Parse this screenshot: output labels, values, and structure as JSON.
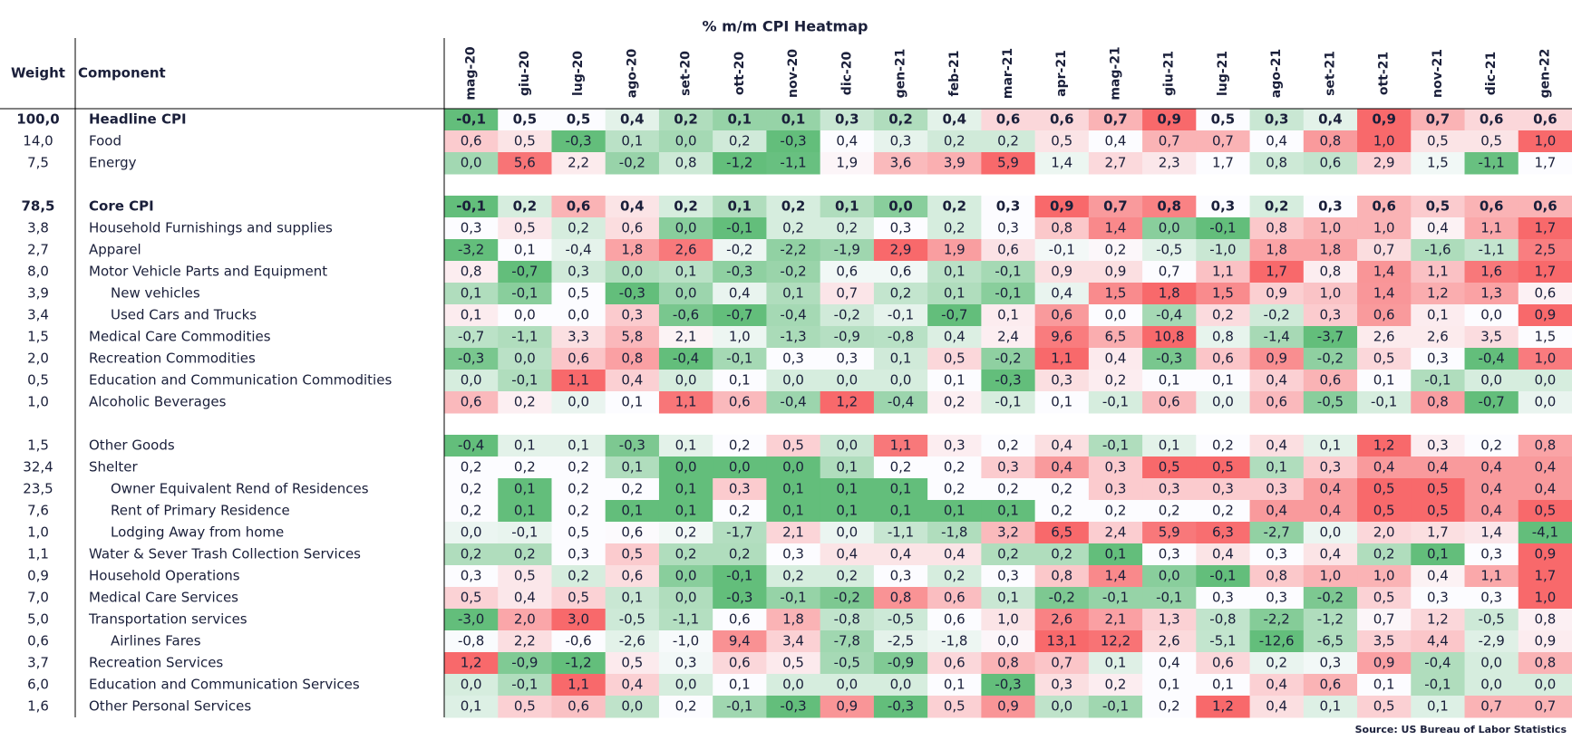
{
  "title": "% m/m CPI Heatmap",
  "columns": {
    "weight": "Weight",
    "component": "Component",
    "months": [
      "mag-20",
      "giu-20",
      "lug-20",
      "ago-20",
      "set-20",
      "ott-20",
      "nov-20",
      "dic-20",
      "gen-21",
      "feb-21",
      "mar-21",
      "apr-21",
      "mag-21",
      "giu-21",
      "lug-21",
      "ago-21",
      "set-21",
      "ott-21",
      "nov-21",
      "dic-21",
      "gen-22"
    ]
  },
  "sections": [
    {
      "rows": [
        {
          "weight": "100,0",
          "component": "Headline CPI",
          "bold": true,
          "values": [
            "-0,1",
            "0,5",
            "0,5",
            "0,4",
            "0,2",
            "0,1",
            "0,1",
            "0,3",
            "0,2",
            "0,4",
            "0,6",
            "0,6",
            "0,7",
            "0,9",
            "0,5",
            "0,3",
            "0,4",
            "0,9",
            "0,7",
            "0,6",
            "0,6"
          ]
        },
        {
          "weight": "14,0",
          "component": "Food",
          "values": [
            "0,6",
            "0,5",
            "-0,3",
            "0,1",
            "0,0",
            "0,2",
            "-0,3",
            "0,4",
            "0,3",
            "0,2",
            "0,2",
            "0,5",
            "0,4",
            "0,7",
            "0,7",
            "0,4",
            "0,8",
            "1,0",
            "0,5",
            "0,5",
            "1,0"
          ]
        },
        {
          "weight": "7,5",
          "component": "Energy",
          "values": [
            "0,0",
            "5,6",
            "2,2",
            "-0,2",
            "0,8",
            "-1,2",
            "-1,1",
            "1,9",
            "3,6",
            "3,9",
            "5,9",
            "1,4",
            "2,7",
            "2,3",
            "1,7",
            "0,8",
            "0,6",
            "2,9",
            "1,5",
            "-1,1",
            "1,7"
          ]
        }
      ]
    },
    {
      "rows": [
        {
          "weight": "78,5",
          "component": "Core CPI",
          "bold": true,
          "values": [
            "-0,1",
            "0,2",
            "0,6",
            "0,4",
            "0,2",
            "0,1",
            "0,2",
            "0,1",
            "0,0",
            "0,2",
            "0,3",
            "0,9",
            "0,7",
            "0,8",
            "0,3",
            "0,2",
            "0,3",
            "0,6",
            "0,5",
            "0,6",
            "0,6"
          ]
        },
        {
          "weight": "3,8",
          "component": "Household Furnishings and supplies",
          "values": [
            "0,3",
            "0,5",
            "0,2",
            "0,6",
            "0,0",
            "-0,1",
            "0,2",
            "0,2",
            "0,3",
            "0,2",
            "0,3",
            "0,8",
            "1,4",
            "0,0",
            "-0,1",
            "0,8",
            "1,0",
            "1,0",
            "0,4",
            "1,1",
            "1,7"
          ]
        },
        {
          "weight": "2,7",
          "component": "Apparel",
          "values": [
            "-3,2",
            "0,1",
            "-0,4",
            "1,8",
            "2,6",
            "-0,2",
            "-2,2",
            "-1,9",
            "2,9",
            "1,9",
            "0,6",
            "-0,1",
            "0,2",
            "-0,5",
            "-1,0",
            "1,8",
            "1,8",
            "0,7",
            "-1,6",
            "-1,1",
            "2,5"
          ]
        },
        {
          "weight": "8,0",
          "component": "Motor Vehicle Parts and Equipment",
          "values": [
            "0,8",
            "-0,7",
            "0,3",
            "0,0",
            "0,1",
            "-0,3",
            "-0,2",
            "0,6",
            "0,6",
            "0,1",
            "-0,1",
            "0,9",
            "0,9",
            "0,7",
            "1,1",
            "1,7",
            "0,8",
            "1,4",
            "1,1",
            "1,6",
            "1,7"
          ]
        },
        {
          "weight": "3,9",
          "component": "New vehicles",
          "indent": true,
          "values": [
            "0,1",
            "-0,1",
            "0,5",
            "-0,3",
            "0,0",
            "0,4",
            "0,1",
            "0,7",
            "0,2",
            "0,1",
            "-0,1",
            "0,4",
            "1,5",
            "1,8",
            "1,5",
            "0,9",
            "1,0",
            "1,4",
            "1,2",
            "1,3",
            "0,6"
          ]
        },
        {
          "weight": "3,4",
          "component": "Used Cars and Trucks",
          "indent": true,
          "values": [
            "0,1",
            "0,0",
            "0,0",
            "0,3",
            "-0,6",
            "-0,7",
            "-0,4",
            "-0,2",
            "-0,1",
            "-0,7",
            "0,1",
            "0,6",
            "0,0",
            "-0,4",
            "0,2",
            "-0,2",
            "0,3",
            "0,6",
            "0,1",
            "0,0",
            "0,9"
          ]
        },
        {
          "weight": "1,5",
          "component": "Medical Care Commodities",
          "values": [
            "-0,7",
            "-1,1",
            "3,3",
            "5,8",
            "2,1",
            "1,0",
            "-1,3",
            "-0,9",
            "-0,8",
            "0,4",
            "2,4",
            "9,6",
            "6,5",
            "10,8",
            "0,8",
            "-1,4",
            "-3,7",
            "2,6",
            "2,6",
            "3,5",
            "1,5"
          ]
        },
        {
          "weight": "2,0",
          "component": "Recreation Commodities",
          "values": [
            "-0,3",
            "0,0",
            "0,6",
            "0,8",
            "-0,4",
            "-0,1",
            "0,3",
            "0,3",
            "0,1",
            "0,5",
            "-0,2",
            "1,1",
            "0,4",
            "-0,3",
            "0,6",
            "0,9",
            "-0,2",
            "0,5",
            "0,3",
            "-0,4",
            "1,0"
          ]
        },
        {
          "weight": "0,5",
          "component": "Education and Communication Commodities",
          "values": [
            "0,0",
            "-0,1",
            "1,1",
            "0,4",
            "0,0",
            "0,1",
            "0,0",
            "0,0",
            "0,0",
            "0,1",
            "-0,3",
            "0,3",
            "0,2",
            "0,1",
            "0,1",
            "0,4",
            "0,6",
            "0,1",
            "-0,1",
            "0,0",
            "0,0"
          ]
        },
        {
          "weight": "1,0",
          "component": "Alcoholic Beverages",
          "values": [
            "0,6",
            "0,2",
            "0,0",
            "0,1",
            "1,1",
            "0,6",
            "-0,4",
            "1,2",
            "-0,4",
            "0,2",
            "-0,1",
            "0,1",
            "-0,1",
            "0,6",
            "0,0",
            "0,6",
            "-0,5",
            "-0,1",
            "0,8",
            "-0,7",
            "0,0"
          ]
        }
      ]
    },
    {
      "rows": [
        {
          "weight": "1,5",
          "component": "Other Goods",
          "values": [
            "-0,4",
            "0,1",
            "0,1",
            "-0,3",
            "0,1",
            "0,2",
            "0,5",
            "0,0",
            "1,1",
            "0,3",
            "0,2",
            "0,4",
            "-0,1",
            "0,1",
            "0,2",
            "0,4",
            "0,1",
            "1,2",
            "0,3",
            "0,2",
            "0,8"
          ]
        },
        {
          "weight": "32,4",
          "component": "Shelter",
          "values": [
            "0,2",
            "0,2",
            "0,2",
            "0,1",
            "0,0",
            "0,0",
            "0,0",
            "0,1",
            "0,2",
            "0,2",
            "0,3",
            "0,4",
            "0,3",
            "0,5",
            "0,5",
            "0,1",
            "0,3",
            "0,4",
            "0,4",
            "0,4",
            "0,4"
          ]
        },
        {
          "weight": "23,5",
          "component": "Owner Equivalent Rend of Residences",
          "indent": true,
          "values": [
            "0,2",
            "0,1",
            "0,2",
            "0,2",
            "0,1",
            "0,3",
            "0,1",
            "0,1",
            "0,1",
            "0,2",
            "0,2",
            "0,2",
            "0,3",
            "0,3",
            "0,3",
            "0,3",
            "0,4",
            "0,5",
            "0,5",
            "0,4",
            "0,4"
          ]
        },
        {
          "weight": "7,6",
          "component": "Rent of Primary Residence",
          "indent": true,
          "values": [
            "0,2",
            "0,1",
            "0,2",
            "0,1",
            "0,1",
            "0,2",
            "0,1",
            "0,1",
            "0,1",
            "0,1",
            "0,1",
            "0,2",
            "0,2",
            "0,2",
            "0,2",
            "0,4",
            "0,4",
            "0,5",
            "0,5",
            "0,4",
            "0,5"
          ]
        },
        {
          "weight": "1,0",
          "component": "Lodging Away from home",
          "indent": true,
          "values": [
            "0,0",
            "-0,1",
            "0,5",
            "0,6",
            "0,2",
            "-1,7",
            "2,1",
            "0,0",
            "-1,1",
            "-1,8",
            "3,2",
            "6,5",
            "2,4",
            "5,9",
            "6,3",
            "-2,7",
            "0,0",
            "2,0",
            "1,7",
            "1,4",
            "-4,1"
          ]
        },
        {
          "weight": "1,1",
          "component": "Water & Sever Trash Collection Services",
          "values": [
            "0,2",
            "0,2",
            "0,3",
            "0,5",
            "0,2",
            "0,2",
            "0,3",
            "0,4",
            "0,4",
            "0,4",
            "0,2",
            "0,2",
            "0,1",
            "0,3",
            "0,4",
            "0,3",
            "0,4",
            "0,2",
            "0,1",
            "0,3",
            "0,9"
          ]
        },
        {
          "weight": "0,9",
          "component": "Household Operations",
          "values": [
            "0,3",
            "0,5",
            "0,2",
            "0,6",
            "0,0",
            "-0,1",
            "0,2",
            "0,2",
            "0,3",
            "0,2",
            "0,3",
            "0,8",
            "1,4",
            "0,0",
            "-0,1",
            "0,8",
            "1,0",
            "1,0",
            "0,4",
            "1,1",
            "1,7"
          ]
        },
        {
          "weight": "7,0",
          "component": "Medical Care Services",
          "values": [
            "0,5",
            "0,4",
            "0,5",
            "0,1",
            "0,0",
            "-0,3",
            "-0,1",
            "-0,2",
            "0,8",
            "0,6",
            "0,1",
            "-0,2",
            "-0,1",
            "-0,1",
            "0,3",
            "0,3",
            "-0,2",
            "0,5",
            "0,3",
            "0,3",
            "1,0"
          ]
        },
        {
          "weight": "5,0",
          "component": "Transportation services",
          "values": [
            "-3,0",
            "2,0",
            "3,0",
            "-0,5",
            "-1,1",
            "0,6",
            "1,8",
            "-0,8",
            "-0,5",
            "0,6",
            "1,0",
            "2,6",
            "2,1",
            "1,3",
            "-0,8",
            "-2,2",
            "-1,2",
            "0,7",
            "1,2",
            "-0,5",
            "0,8"
          ]
        },
        {
          "weight": "0,6",
          "component": "Airlines Fares",
          "indent": true,
          "values": [
            "-0,8",
            "2,2",
            "-0,6",
            "-2,6",
            "-1,0",
            "9,4",
            "3,4",
            "-7,8",
            "-2,5",
            "-1,8",
            "0,0",
            "13,1",
            "12,2",
            "2,6",
            "-5,1",
            "-12,6",
            "-6,5",
            "3,5",
            "4,4",
            "-2,9",
            "0,9"
          ]
        },
        {
          "weight": "3,7",
          "component": "Recreation Services",
          "values": [
            "1,2",
            "-0,9",
            "-1,2",
            "0,5",
            "0,3",
            "0,6",
            "0,5",
            "-0,5",
            "-0,9",
            "0,6",
            "0,8",
            "0,7",
            "0,1",
            "0,4",
            "0,6",
            "0,2",
            "0,3",
            "0,9",
            "-0,4",
            "0,0",
            "0,8"
          ]
        },
        {
          "weight": "6,0",
          "component": "Education and Communication Services",
          "values": [
            "0,0",
            "-0,1",
            "1,1",
            "0,4",
            "0,0",
            "0,1",
            "0,0",
            "0,0",
            "0,0",
            "0,1",
            "-0,3",
            "0,3",
            "0,2",
            "0,1",
            "0,1",
            "0,4",
            "0,6",
            "0,1",
            "-0,1",
            "0,0",
            "0,0"
          ]
        },
        {
          "weight": "1,6",
          "component": "Other Personal Services",
          "values": [
            "0,1",
            "0,5",
            "0,6",
            "0,0",
            "0,2",
            "-0,1",
            "-0,3",
            "0,9",
            "-0,3",
            "0,5",
            "0,9",
            "0,0",
            "-0,1",
            "0,2",
            "1,2",
            "0,4",
            "0,1",
            "0,5",
            "0,1",
            "0,7",
            "0,7"
          ]
        }
      ]
    }
  ],
  "source": "Source: US Bureau of Labor Statistics"
}
